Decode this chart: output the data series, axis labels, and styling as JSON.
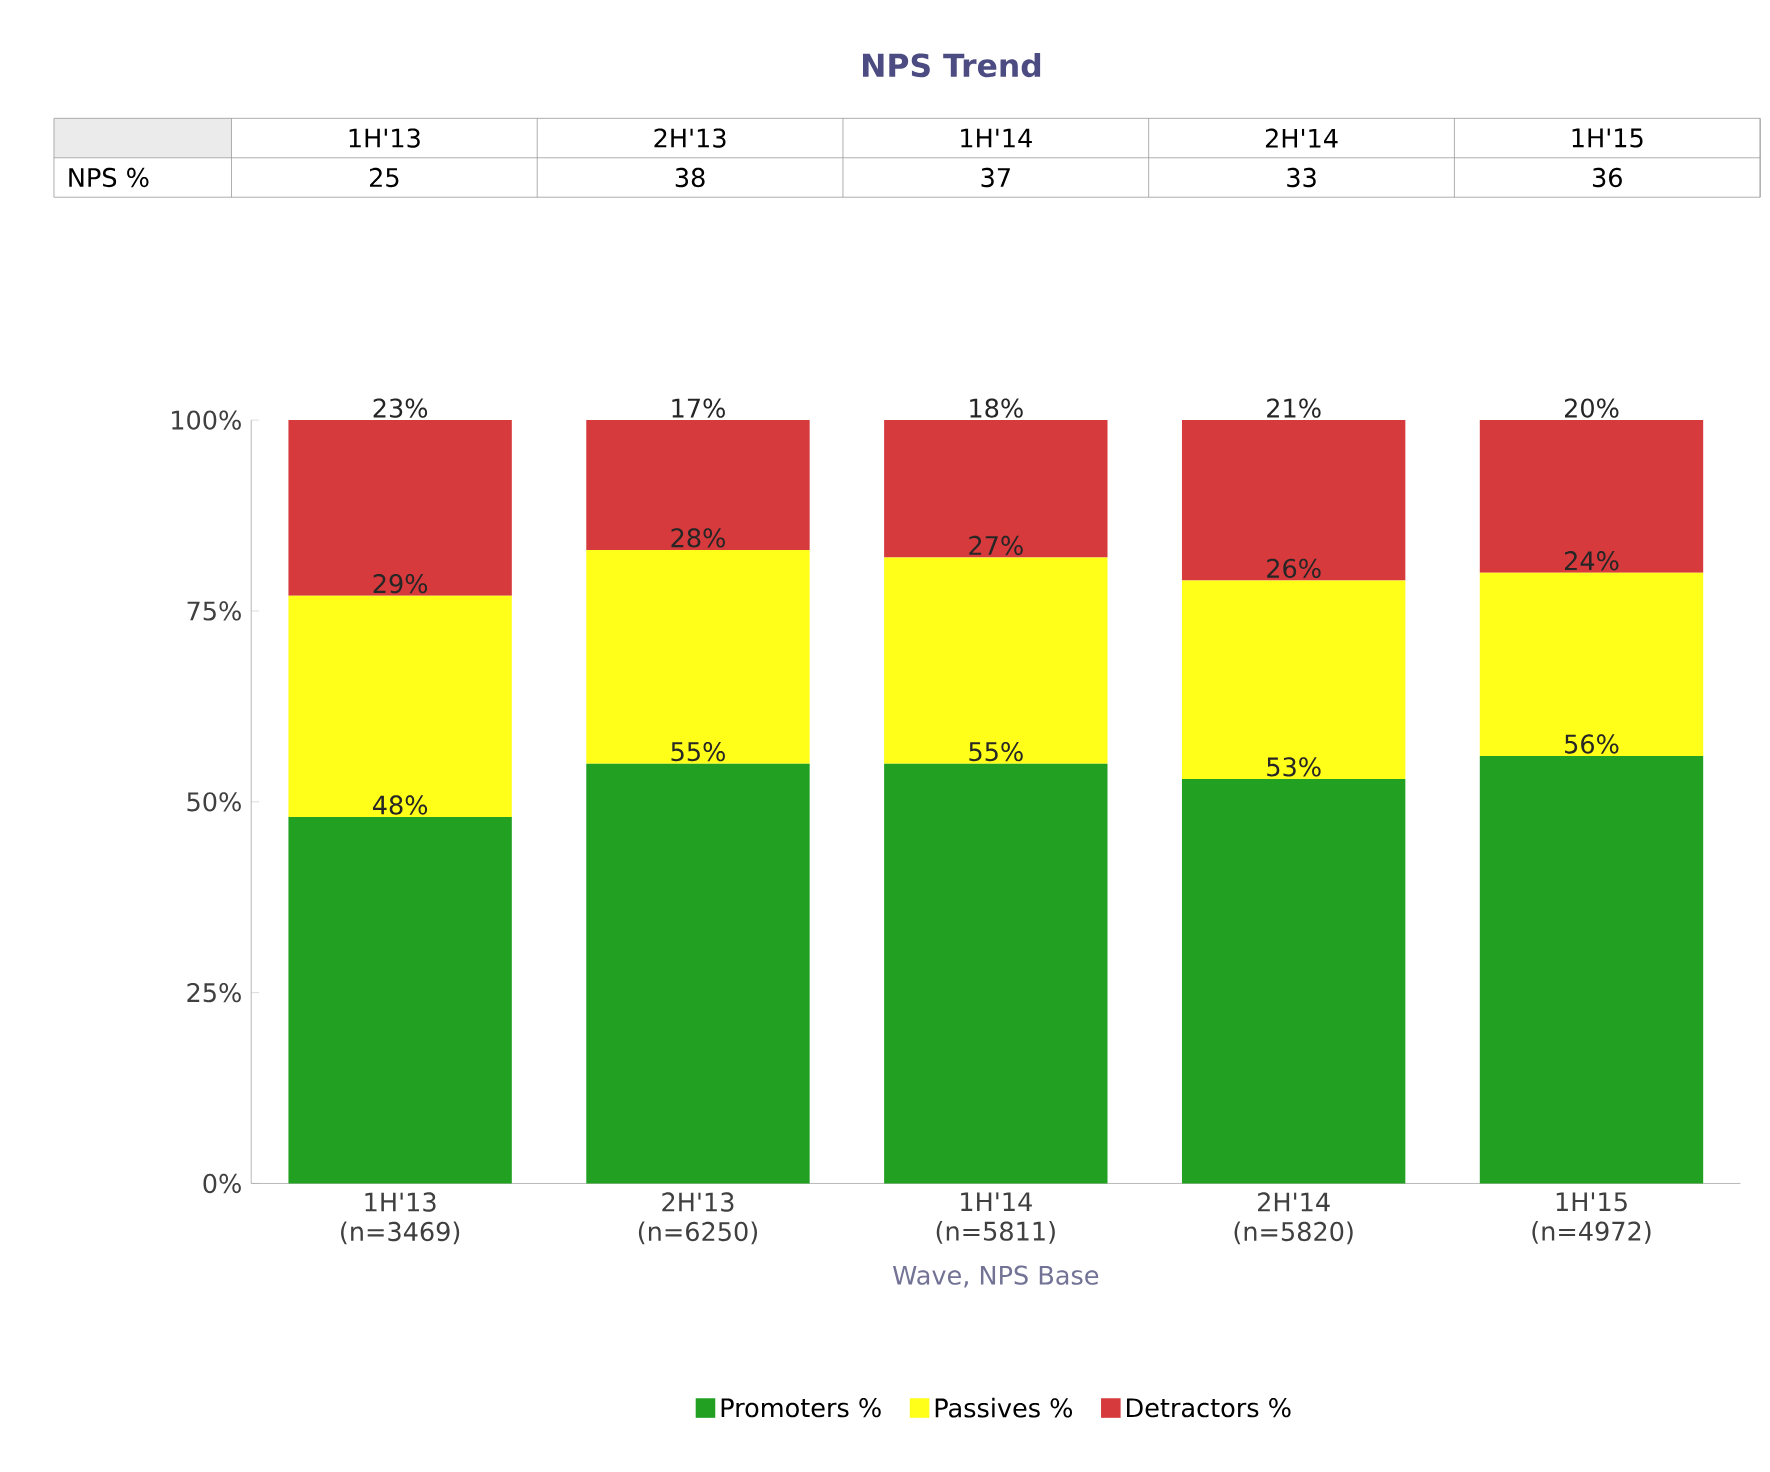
{
  "chart_data": {
    "type": "bar",
    "title": "NPS Trend",
    "xlabel": "Wave, NPS Base",
    "stacked": true,
    "legend": "bottom",
    "categories": [
      "1H'13 (n=3469)",
      "2H'13 (n=6250)",
      "1H'14 (n=5811)",
      "2H'14 (n=5820)",
      "1H'15 (n=4972)"
    ],
    "ylim": [
      0,
      100
    ],
    "yticks": [
      {
        "value": 0,
        "label": "0%"
      },
      {
        "value": 25,
        "label": "25%"
      },
      {
        "value": 50,
        "label": "50%"
      },
      {
        "value": 75,
        "label": "75%"
      },
      {
        "value": 100,
        "label": "100%"
      }
    ],
    "series": [
      {
        "name": "Promoters %",
        "color": "#22a022",
        "values": [
          48,
          55,
          55,
          53,
          56
        ],
        "value_labels": [
          "48%",
          "55%",
          "55%",
          "53%",
          "56%"
        ]
      },
      {
        "name": "Passives %",
        "color": "#ffff1a",
        "values": [
          29,
          28,
          27,
          26,
          24
        ],
        "value_labels": [
          "29%",
          "28%",
          "27%",
          "26%",
          "24%"
        ]
      },
      {
        "name": "Detractors %",
        "color": "#d63a3c",
        "values": [
          23,
          17,
          18,
          21,
          20
        ],
        "value_labels": [
          "23%",
          "17%",
          "18%",
          "21%",
          "20%"
        ]
      }
    ],
    "annotations": [
      "1H'13",
      "2H'13",
      "1H'14",
      "2H'14",
      "1H'15",
      "NPS %",
      "25",
      "38",
      "37",
      "33",
      "36"
    ]
  }
}
